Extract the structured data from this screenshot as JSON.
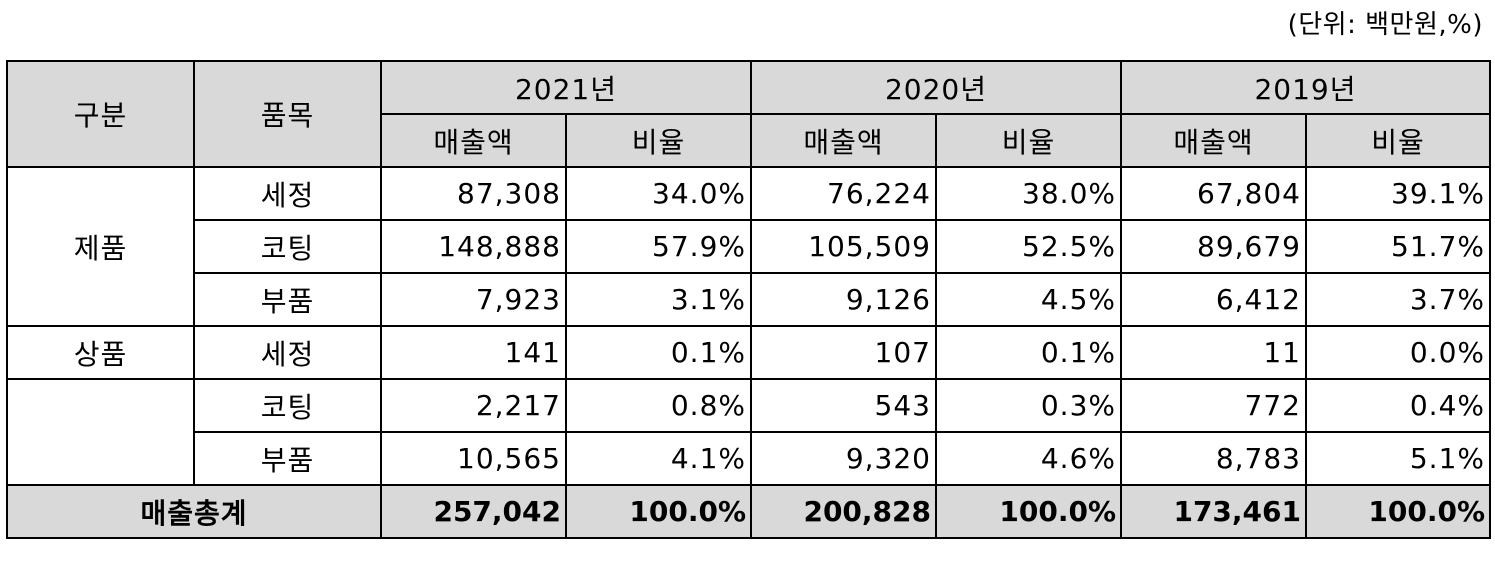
{
  "unit_note": "(단위: 백만원,%)",
  "headers": {
    "category": "구분",
    "item": "품목",
    "years": [
      "2021년",
      "2020년",
      "2019년"
    ],
    "sales": "매출액",
    "ratio": "비율"
  },
  "rows": [
    {
      "group": "제품",
      "item": "세정",
      "values": [
        "87,308",
        "34.0%",
        "76,224",
        "38.0%",
        "67,804",
        "39.1%"
      ]
    },
    {
      "group": "",
      "item": "코팅",
      "values": [
        "148,888",
        "57.9%",
        "105,509",
        "52.5%",
        "89,679",
        "51.7%"
      ]
    },
    {
      "group": "",
      "item": "부품",
      "values": [
        "7,923",
        "3.1%",
        "9,126",
        "4.5%",
        "6,412",
        "3.7%"
      ]
    },
    {
      "group": "상품",
      "item": "세정",
      "values": [
        "141",
        "0.1%",
        "107",
        "0.1%",
        "11",
        "0.0%"
      ]
    },
    {
      "group": "",
      "item": "코팅",
      "values": [
        "2,217",
        "0.8%",
        "543",
        "0.3%",
        "772",
        "0.4%"
      ]
    },
    {
      "group": "",
      "item": "부품",
      "values": [
        "10,565",
        "4.1%",
        "9,320",
        "4.6%",
        "8,783",
        "5.1%"
      ]
    }
  ],
  "total": {
    "label": "매출총계",
    "values": [
      "257,042",
      "100.0%",
      "200,828",
      "100.0%",
      "173,461",
      "100.0%"
    ]
  }
}
